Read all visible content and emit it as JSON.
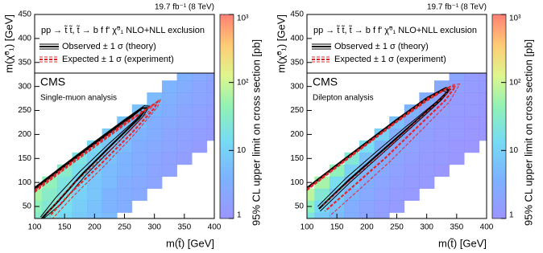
{
  "chart_data": [
    {
      "type": "heatmap",
      "lumi": "19.7 fb⁻¹ (8 TeV)",
      "legend_title": "pp → t̃ t̃, t̃ → b f f' χ̃⁰₁  NLO+NLL exclusion",
      "experiment": "CMS",
      "subtitle": "Single-muon analysis",
      "xlabel": "m(t̃) [GeV]",
      "ylabel": "m(χ̃⁰₁) [GeV]",
      "zlabel": "95% CL upper limit on cross section [pb]",
      "xlim": [
        100,
        400
      ],
      "ylim": [
        25,
        450
      ],
      "xticks": [
        100,
        150,
        200,
        250,
        300,
        350,
        400
      ],
      "yticks": [
        50,
        100,
        150,
        200,
        250,
        300,
        350,
        400,
        450
      ],
      "zlim": [
        1,
        1000
      ],
      "zlog": true,
      "zticks": [
        1,
        10,
        {
          "value": 100,
          "label": "10²"
        },
        {
          "value": 1000,
          "label": "10³"
        }
      ],
      "x": [
        100,
        125,
        150,
        175,
        200,
        225,
        250,
        275,
        300,
        325,
        350,
        375,
        400
      ],
      "y": [
        25,
        50,
        75,
        100,
        125,
        150,
        175,
        200,
        225,
        250,
        275,
        300,
        325
      ],
      "z": [
        [
          30,
          20,
          12,
          8,
          6,
          5,
          null,
          null,
          null,
          null,
          null,
          null,
          null
        ],
        [
          40,
          25,
          15,
          9,
          6,
          4,
          3,
          null,
          null,
          null,
          null,
          null,
          null
        ],
        [
          60,
          30,
          18,
          10,
          7,
          4,
          3,
          2.5,
          null,
          null,
          null,
          null,
          null
        ],
        [
          null,
          40,
          20,
          12,
          7,
          5,
          3,
          2.5,
          2,
          null,
          null,
          null,
          null
        ],
        [
          null,
          null,
          30,
          15,
          8,
          5,
          4,
          3,
          2,
          1.8,
          null,
          null,
          null
        ],
        [
          null,
          null,
          null,
          20,
          10,
          6,
          4,
          3,
          2.2,
          1.8,
          1.5,
          null,
          null
        ],
        [
          null,
          null,
          null,
          null,
          12,
          7,
          5,
          3,
          2.5,
          2,
          1.6,
          1.4,
          null
        ],
        [
          null,
          null,
          null,
          null,
          null,
          9,
          6,
          4,
          3,
          2,
          1.8,
          1.5,
          1.3
        ],
        [
          null,
          null,
          null,
          null,
          null,
          null,
          7,
          5,
          3,
          2.5,
          2,
          1.6,
          1.4
        ],
        [
          null,
          null,
          null,
          null,
          null,
          null,
          null,
          6,
          4,
          3,
          2.2,
          1.8,
          1.5
        ],
        [
          null,
          null,
          null,
          null,
          null,
          null,
          null,
          null,
          5,
          3.5,
          2.5,
          2,
          1.6
        ],
        [
          null,
          null,
          null,
          null,
          null,
          null,
          null,
          null,
          null,
          4,
          3,
          2.2,
          1.8
        ],
        [
          null,
          null,
          null,
          null,
          null,
          null,
          null,
          null,
          null,
          null,
          3.5,
          2.5,
          2
        ]
      ],
      "series": [
        {
          "name": "Observed ± 1 σ (theory)",
          "color": "#000000",
          "dashed": false,
          "lines": [
            {
              "x": [
                100,
                150,
                200,
                250,
                280,
                287,
                275,
                230,
                180,
                140,
                112
              ],
              "y": [
                87,
                135,
                182,
                228,
                255,
                255,
                235,
                180,
                118,
                62,
                25
              ]
            },
            {
              "x": [
                100,
                150,
                200,
                250,
                283,
                292,
                280,
                235,
                185,
                145,
                115
              ],
              "y": [
                90,
                138,
                185,
                231,
                260,
                259,
                236,
                178,
                115,
                56,
                25
              ]
            },
            {
              "x": [
                100,
                150,
                200,
                250,
                276,
                280,
                270,
                225,
                175,
                135,
                110
              ],
              "y": [
                84,
                132,
                179,
                224,
                250,
                248,
                232,
                182,
                122,
                68,
                28
              ]
            }
          ]
        },
        {
          "name": "Expected ± 1 σ (experiment)",
          "color": "#e3262a",
          "dashed": true,
          "lines": [
            {
              "x": [
                100,
                150,
                200,
                250,
                290,
                305,
                300,
                260,
                210,
                160,
                125
              ],
              "y": [
                82,
                130,
                176,
                222,
                255,
                268,
                255,
                200,
                138,
                78,
                30
              ]
            },
            {
              "x": [
                100,
                150,
                200,
                250,
                295,
                310,
                305,
                265,
                215,
                165,
                130
              ],
              "y": [
                85,
                133,
                179,
                225,
                260,
                272,
                257,
                198,
                133,
                72,
                25
              ]
            },
            {
              "x": [
                100,
                150,
                200,
                250,
                285,
                298,
                292,
                255,
                205,
                155,
                120
              ],
              "y": [
                79,
                127,
                173,
                219,
                250,
                262,
                250,
                202,
                143,
                85,
                35
              ]
            }
          ]
        }
      ]
    },
    {
      "type": "heatmap",
      "lumi": "19.7 fb⁻¹ (8 TeV)",
      "legend_title": "pp → t̃ t̃, t̃ → b f f' χ̃⁰₁  NLO+NLL exclusion",
      "experiment": "CMS",
      "subtitle": "Dilepton analysis",
      "xlabel": "m(t̃) [GeV]",
      "ylabel": "m(χ̃⁰₁) [GeV]",
      "zlabel": "95% CL upper limit on cross section [pb]",
      "xlim": [
        100,
        400
      ],
      "ylim": [
        25,
        450
      ],
      "xticks": [
        100,
        150,
        200,
        250,
        300,
        350,
        400
      ],
      "yticks": [
        50,
        100,
        150,
        200,
        250,
        300,
        350,
        400,
        450
      ],
      "zlim": [
        1,
        1000
      ],
      "zlog": true,
      "zticks": [
        1,
        10,
        {
          "value": 100,
          "label": "10²"
        },
        {
          "value": 1000,
          "label": "10³"
        }
      ],
      "x": [
        100,
        125,
        150,
        175,
        200,
        225,
        250,
        275,
        300,
        325,
        350,
        375,
        400
      ],
      "y": [
        25,
        50,
        75,
        100,
        125,
        150,
        175,
        200,
        225,
        250,
        275,
        300,
        325
      ],
      "z": [
        [
          20,
          8,
          5,
          3,
          2,
          1.5,
          null,
          null,
          null,
          null,
          null,
          null,
          null
        ],
        [
          40,
          12,
          6,
          3,
          2,
          1.5,
          1.3,
          null,
          null,
          null,
          null,
          null,
          null
        ],
        [
          80,
          25,
          8,
          4,
          2.5,
          1.8,
          1.4,
          1.2,
          null,
          null,
          null,
          null,
          null
        ],
        [
          null,
          60,
          15,
          6,
          3,
          2,
          1.5,
          1.3,
          1.2,
          null,
          null,
          null,
          null
        ],
        [
          null,
          null,
          40,
          10,
          4,
          2.5,
          1.8,
          1.4,
          1.2,
          1.1,
          null,
          null,
          null
        ],
        [
          null,
          null,
          null,
          25,
          6,
          3,
          2,
          1.5,
          1.3,
          1.2,
          1.1,
          null,
          null
        ],
        [
          null,
          null,
          null,
          null,
          15,
          4,
          2.5,
          1.8,
          1.4,
          1.2,
          1.1,
          1.05,
          null
        ],
        [
          null,
          null,
          null,
          null,
          null,
          10,
          3,
          2,
          1.5,
          1.3,
          1.2,
          1.1,
          1.05
        ],
        [
          null,
          null,
          null,
          null,
          null,
          null,
          6,
          2.5,
          1.7,
          1.4,
          1.2,
          1.1,
          1.05
        ],
        [
          null,
          null,
          null,
          null,
          null,
          null,
          null,
          4,
          2,
          1.5,
          1.3,
          1.2,
          1.1
        ],
        [
          null,
          null,
          null,
          null,
          null,
          null,
          null,
          null,
          3,
          1.8,
          1.4,
          1.2,
          1.1
        ],
        [
          null,
          null,
          null,
          null,
          null,
          null,
          null,
          null,
          null,
          2.5,
          1.6,
          1.3,
          1.2
        ],
        [
          null,
          null,
          null,
          null,
          null,
          null,
          null,
          null,
          null,
          null,
          2,
          1.4,
          1.2
        ]
      ],
      "series": [
        {
          "name": "Observed ± 1 σ (theory)",
          "color": "#000000",
          "dashed": false,
          "lines": [
            {
              "x": [
                100,
                150,
                200,
                250,
                300,
                330,
                337,
                320,
                270,
                220,
                170,
                120
              ],
              "y": [
                88,
                136,
                183,
                230,
                275,
                295,
                292,
                270,
                215,
                160,
                105,
                45
              ]
            },
            {
              "x": [
                100,
                150,
                200,
                250,
                300,
                332,
                340,
                323,
                272,
                222,
                172,
                122
              ],
              "y": [
                90,
                138,
                185,
                232,
                277,
                298,
                294,
                270,
                212,
                156,
                100,
                40
              ]
            },
            {
              "x": [
                100,
                150,
                200,
                250,
                300,
                327,
                333,
                316,
                266,
                216,
                166,
                118
              ],
              "y": [
                86,
                134,
                181,
                228,
                272,
                291,
                288,
                268,
                217,
                164,
                110,
                50
              ]
            }
          ]
        },
        {
          "name": "Expected ± 1 σ (experiment)",
          "color": "#e3262a",
          "dashed": true,
          "lines": [
            {
              "x": [
                100,
                150,
                200,
                250,
                300,
                340,
                348,
                330,
                280,
                230,
                180,
                130
              ],
              "y": [
                85,
                133,
                180,
                227,
                272,
                300,
                300,
                270,
                210,
                150,
                95,
                40
              ]
            },
            {
              "x": [
                100,
                150,
                200,
                250,
                300,
                345,
                355,
                338,
                288,
                238,
                188,
                138
              ],
              "y": [
                87,
                135,
                182,
                229,
                275,
                304,
                305,
                268,
                205,
                143,
                86,
                30
              ]
            },
            {
              "x": [
                100,
                150,
                200,
                250,
                300,
                335,
                341,
                322,
                272,
                222,
                172,
                124
              ],
              "y": [
                83,
                131,
                178,
                225,
                269,
                296,
                295,
                272,
                215,
                157,
                104,
                50
              ]
            }
          ]
        }
      ]
    }
  ]
}
